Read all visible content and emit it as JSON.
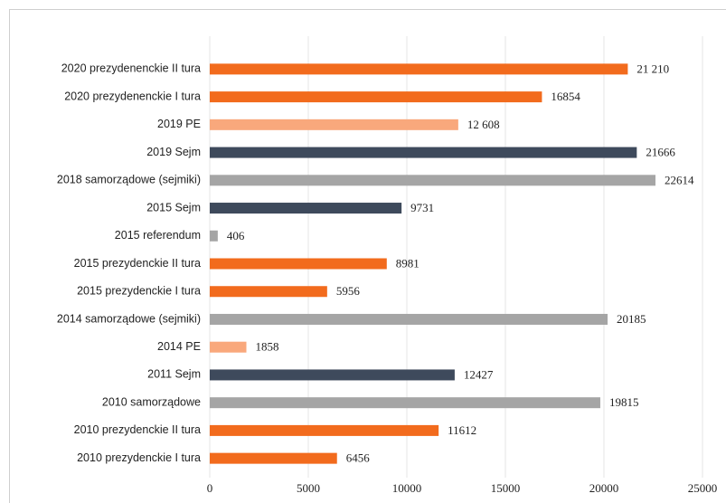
{
  "chart_data": {
    "type": "barh",
    "categories": [
      "2020 prezydenenckie II tura",
      "2020 prezydenenckie I tura",
      "2019 PE",
      "2019 Sejm",
      "2018 samorządowe (sejmiki)",
      "2015 Sejm",
      "2015 referendum",
      "2015 prezydenckie II tura",
      "2015 prezydenckie I tura",
      "2014 samorządowe (sejmiki)",
      "2014 PE",
      "2011 Sejm",
      "2010 samorządowe",
      "2010 prezydenckie II tura",
      "2010 prezydenckie I tura"
    ],
    "values": [
      21210,
      16854,
      12608,
      21666,
      22614,
      9731,
      406,
      8981,
      5956,
      20185,
      1858,
      12427,
      19815,
      11612,
      6456
    ],
    "value_labels": [
      "21 210",
      "16854",
      "12 608",
      "21666",
      "22614",
      "9731",
      "406",
      "8981",
      "5956",
      "20185",
      "1858",
      "12427",
      "19815",
      "11612",
      "6456"
    ],
    "colors": [
      "#f26b1d",
      "#f26b1d",
      "#f9a87c",
      "#3e4a5c",
      "#a5a5a5",
      "#3e4a5c",
      "#a5a5a5",
      "#f26b1d",
      "#f26b1d",
      "#a5a5a5",
      "#f9a87c",
      "#3e4a5c",
      "#a5a5a5",
      "#f26b1d",
      "#f26b1d"
    ],
    "xlim": [
      0,
      25000
    ],
    "xticks": [
      0,
      5000,
      10000,
      15000,
      20000,
      25000
    ],
    "grid": true
  }
}
